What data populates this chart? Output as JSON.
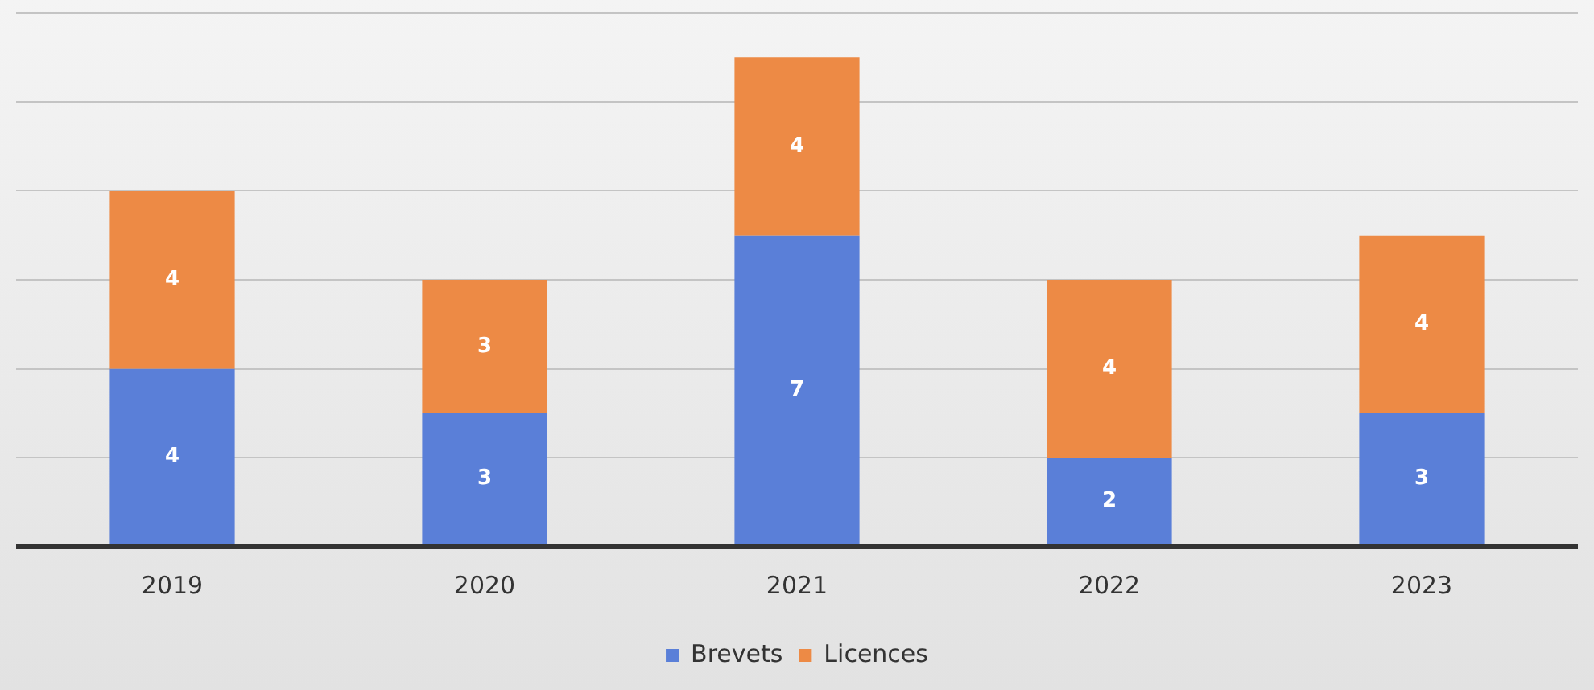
{
  "chart_data": {
    "type": "bar",
    "stacked": true,
    "categories": [
      "2019",
      "2020",
      "2021",
      "2022",
      "2023"
    ],
    "series": [
      {
        "name": "Brevets",
        "color": "#5a7fd8",
        "values": [
          4,
          3,
          7,
          2,
          3
        ]
      },
      {
        "name": "Licences",
        "color": "#ed8a45",
        "values": [
          4,
          3,
          4,
          4,
          4
        ]
      }
    ],
    "ylim": [
      0,
      12
    ],
    "tick_labels": "x",
    "grid": "y",
    "legend": "bottom",
    "data_labels": true
  }
}
